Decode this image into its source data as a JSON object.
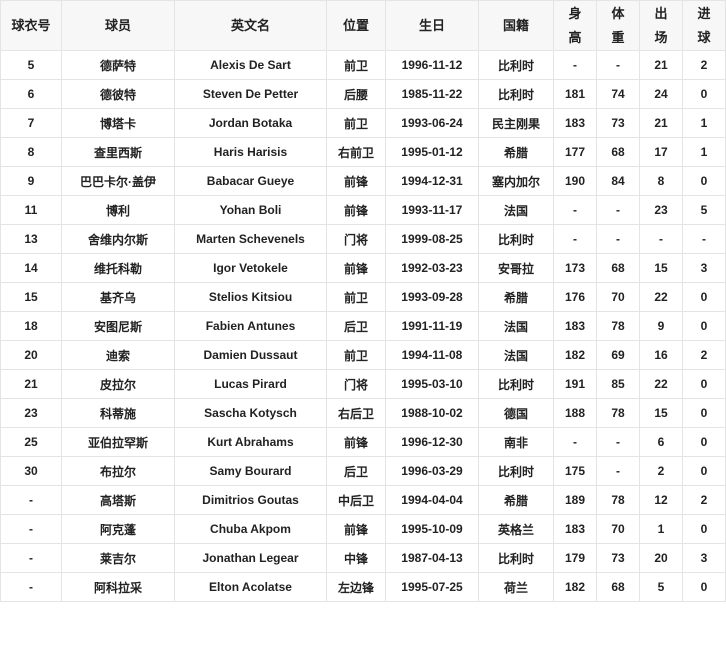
{
  "headers": [
    "球衣号",
    "球员",
    "英文名",
    "位置",
    "生日",
    "国籍",
    "身高",
    "体重",
    "出场",
    "进球"
  ],
  "rows": [
    [
      "5",
      "德萨特",
      "Alexis De Sart",
      "前卫",
      "1996-11-12",
      "比利时",
      "-",
      "-",
      "21",
      "2"
    ],
    [
      "6",
      "德彼特",
      "Steven De Petter",
      "后腰",
      "1985-11-22",
      "比利时",
      "181",
      "74",
      "24",
      "0"
    ],
    [
      "7",
      "博塔卡",
      "Jordan Botaka",
      "前卫",
      "1993-06-24",
      "民主刚果",
      "183",
      "73",
      "21",
      "1"
    ],
    [
      "8",
      "查里西斯",
      "Haris Harisis",
      "右前卫",
      "1995-01-12",
      "希腊",
      "177",
      "68",
      "17",
      "1"
    ],
    [
      "9",
      "巴巴卡尔·盖伊",
      "Babacar Gueye",
      "前锋",
      "1994-12-31",
      "塞内加尔",
      "190",
      "84",
      "8",
      "0"
    ],
    [
      "11",
      "博利",
      "Yohan Boli",
      "前锋",
      "1993-11-17",
      "法国",
      "-",
      "-",
      "23",
      "5"
    ],
    [
      "13",
      "舍维内尔斯",
      "Marten Schevenels",
      "门将",
      "1999-08-25",
      "比利时",
      "-",
      "-",
      "-",
      "-"
    ],
    [
      "14",
      "维托科勒",
      "Igor Vetokele",
      "前锋",
      "1992-03-23",
      "安哥拉",
      "173",
      "68",
      "15",
      "3"
    ],
    [
      "15",
      "基齐乌",
      "Stelios Kitsiou",
      "前卫",
      "1993-09-28",
      "希腊",
      "176",
      "70",
      "22",
      "0"
    ],
    [
      "18",
      "安图尼斯",
      "Fabien Antunes",
      "后卫",
      "1991-11-19",
      "法国",
      "183",
      "78",
      "9",
      "0"
    ],
    [
      "20",
      "迪索",
      "Damien Dussaut",
      "前卫",
      "1994-11-08",
      "法国",
      "182",
      "69",
      "16",
      "2"
    ],
    [
      "21",
      "皮拉尔",
      "Lucas Pirard",
      "门将",
      "1995-03-10",
      "比利时",
      "191",
      "85",
      "22",
      "0"
    ],
    [
      "23",
      "科蒂施",
      "Sascha Kotysch",
      "右后卫",
      "1988-10-02",
      "德国",
      "188",
      "78",
      "15",
      "0"
    ],
    [
      "25",
      "亚伯拉罕斯",
      "Kurt Abrahams",
      "前锋",
      "1996-12-30",
      "南非",
      "-",
      "-",
      "6",
      "0"
    ],
    [
      "30",
      "布拉尔",
      "Samy Bourard",
      "后卫",
      "1996-03-29",
      "比利时",
      "175",
      "-",
      "2",
      "0"
    ],
    [
      "-",
      "高塔斯",
      "Dimitrios Goutas",
      "中后卫",
      "1994-04-04",
      "希腊",
      "189",
      "78",
      "12",
      "2"
    ],
    [
      "-",
      "阿克蓬",
      "Chuba Akpom",
      "前锋",
      "1995-10-09",
      "英格兰",
      "183",
      "70",
      "1",
      "0"
    ],
    [
      "-",
      "莱吉尔",
      "Jonathan Legear",
      "中锋",
      "1987-04-13",
      "比利时",
      "179",
      "73",
      "20",
      "3"
    ],
    [
      "-",
      "阿科拉采",
      "Elton Acolatse",
      "左边锋",
      "1995-07-25",
      "荷兰",
      "182",
      "68",
      "5",
      "0"
    ]
  ]
}
